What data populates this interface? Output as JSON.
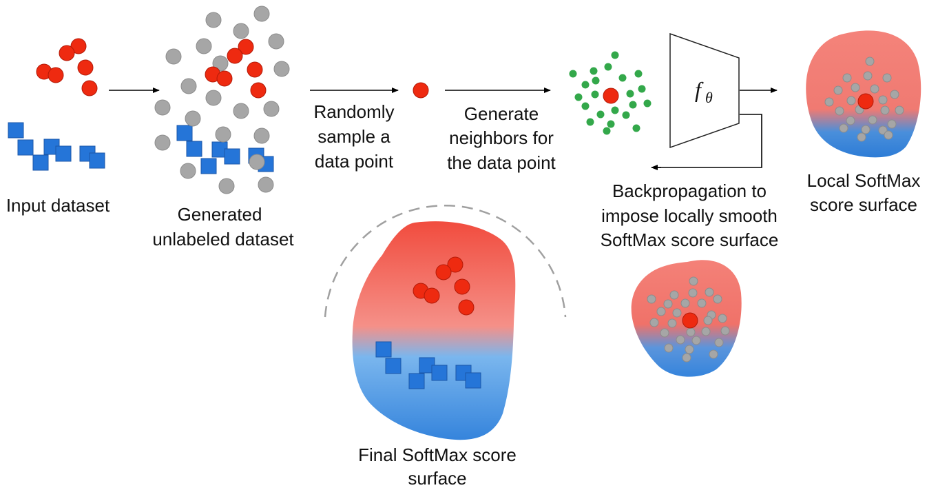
{
  "labels": {
    "input_dataset": "Input dataset",
    "generated_line1": "Generated",
    "generated_line2": "unlabeled dataset",
    "randomly_line1": "Randomly",
    "randomly_line2": "sample a",
    "randomly_line3": "data point",
    "generate_line1": "Generate",
    "generate_line2": "neighbors for",
    "generate_line3": "the data point",
    "model_symbol": "f",
    "model_subscript": "θ",
    "backprop_line1": "Backpropagation to",
    "backprop_line2": "impose locally smooth",
    "backprop_line3": "SoftMax score surface",
    "local_line1": "Local SoftMax",
    "local_line2": "score surface",
    "final_line1": "Final SoftMax score",
    "final_line2": "surface"
  },
  "colors": {
    "red_point": "#ee2a10",
    "red_stroke": "#b31a08",
    "gray_point": "#a6a6a6",
    "gray_stroke": "#8c8c8c",
    "green_point": "#33a84a",
    "blue_square": "#2575d8",
    "blue_stroke": "#1a56a8",
    "surface_red": "#f1604f",
    "surface_blue": "#3a8ee0",
    "dashed_arc": "#a0a0a0"
  }
}
